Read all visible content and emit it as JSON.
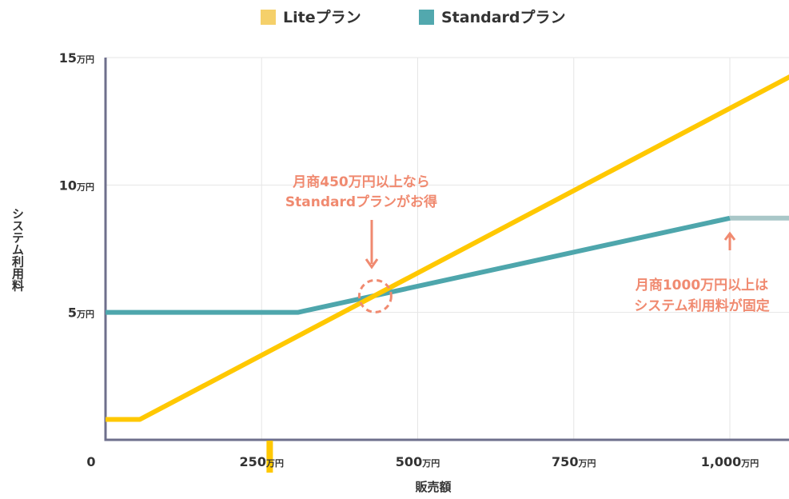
{
  "chart_data": {
    "type": "line",
    "legend": {
      "placement": "top-center",
      "entries": [
        {
          "label": "Liteプラン",
          "color": "#F5D06A"
        },
        {
          "label": "Standardプラン",
          "color": "#52A8AE"
        }
      ]
    },
    "xlabel": "販売額",
    "ylabel": "システム利用料",
    "xlim": [
      0,
      1100
    ],
    "ylim": [
      0,
      15
    ],
    "x_ticks": [
      {
        "value": 0,
        "label": "0",
        "unit": ""
      },
      {
        "value": 250,
        "label": "250",
        "unit": "万円"
      },
      {
        "value": 500,
        "label": "500",
        "unit": "万円"
      },
      {
        "value": 750,
        "label": "750",
        "unit": "万円"
      },
      {
        "value": 1000,
        "label": "1,000",
        "unit": "万円"
      }
    ],
    "y_ticks": [
      {
        "value": 5,
        "label": "5",
        "unit": "万円"
      },
      {
        "value": 10,
        "label": "10",
        "unit": "万円"
      },
      {
        "value": 15,
        "label": "15",
        "unit": "万円"
      }
    ],
    "grid": true,
    "series": [
      {
        "name": "Liteプラン",
        "color": "#FFC800",
        "x": [
          0,
          55,
          1100
        ],
        "y": [
          0.8,
          0.8,
          14.3
        ]
      },
      {
        "name": "Standardプラン",
        "color": "#4EA6AC",
        "x": [
          0,
          308,
          1000
        ],
        "y": [
          5.0,
          5.0,
          8.7
        ]
      },
      {
        "name": "",
        "color": "#A9C7C8",
        "x": [
          1000,
          1100
        ],
        "y": [
          8.7,
          8.7
        ]
      }
    ],
    "marker": {
      "x": 263,
      "color": "#FFC800"
    },
    "annotations": [
      {
        "lines": [
          "月商450万円以上なら",
          "Standardプランがお得"
        ],
        "color": "#F08A70",
        "target": {
          "x": 432,
          "y": 5.7
        }
      },
      {
        "lines": [
          "月商1000万円以上は",
          "システム利用料が固定"
        ],
        "color": "#F08A70",
        "target": {
          "x": 1000,
          "y": 8.0
        }
      }
    ]
  }
}
